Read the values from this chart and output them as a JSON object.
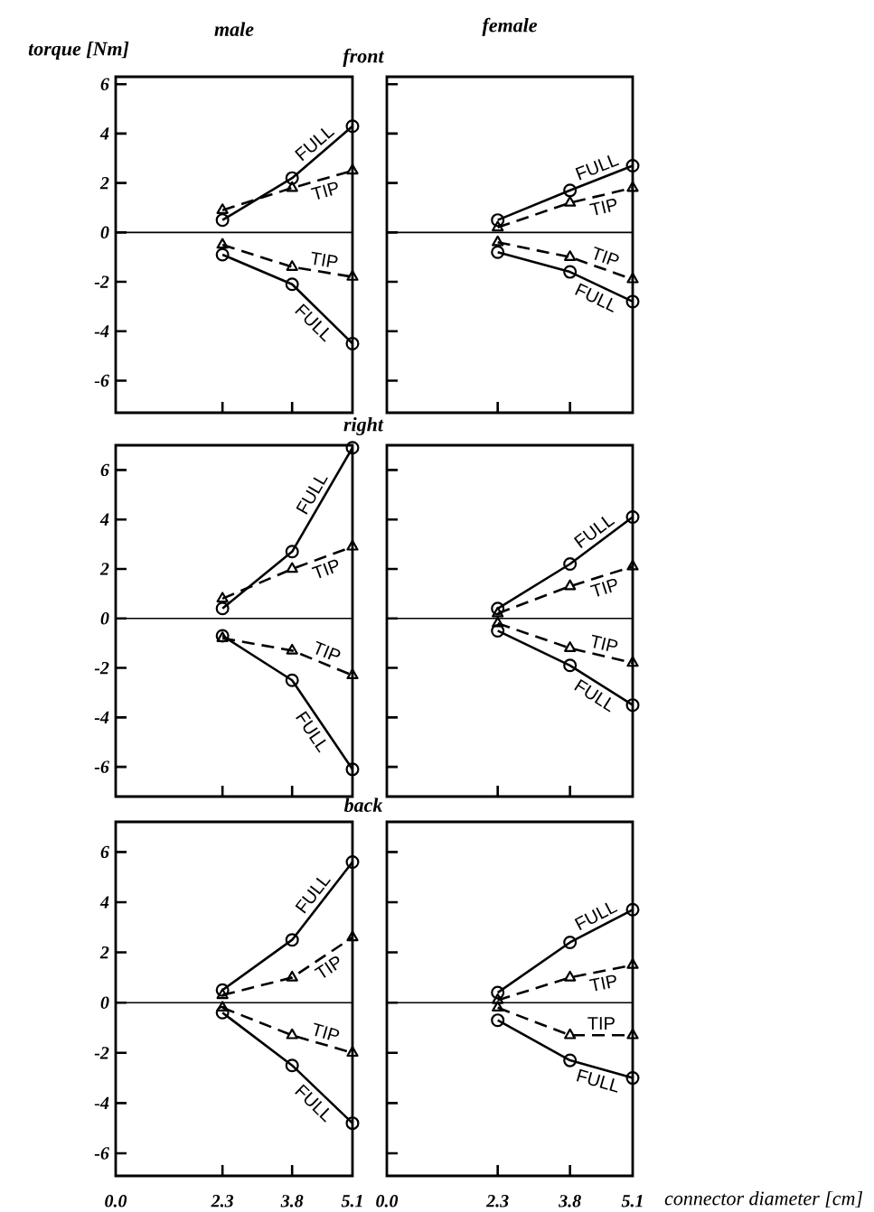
{
  "chart_data": [
    {
      "type": "line",
      "title": "male",
      "ylabel": "torque [Nm]",
      "annotations": [
        "front"
      ],
      "x": [
        2.3,
        3.8,
        5.1
      ],
      "xlim": [
        0,
        5.1
      ],
      "ylim": [
        -7.3,
        6.3
      ],
      "xticks": [
        0,
        2.3,
        3.8,
        5.1
      ],
      "yticks": [
        -6,
        -4,
        -2,
        0,
        2,
        4,
        6
      ],
      "tick_labels": "y",
      "ref_lines": [
        {
          "axis": "y",
          "value": 0
        }
      ],
      "series": [
        {
          "name": "FULL",
          "color": "#000000",
          "marker": "circle",
          "line_style": "solid",
          "values": [
            0.5,
            2.2,
            4.3
          ]
        },
        {
          "name": "TIP",
          "color": "#000000",
          "marker": "triangle",
          "line_style": "dashed",
          "values": [
            0.9,
            1.8,
            2.5
          ]
        },
        {
          "name": "TIP",
          "color": "#000000",
          "marker": "triangle",
          "line_style": "dashed",
          "values": [
            -0.5,
            -1.4,
            -1.8
          ]
        },
        {
          "name": "FULL",
          "color": "#000000",
          "marker": "circle",
          "line_style": "solid",
          "values": [
            -0.9,
            -2.1,
            -4.5
          ]
        }
      ]
    },
    {
      "type": "line",
      "title": "female",
      "x": [
        2.3,
        3.8,
        5.1
      ],
      "xlim": [
        0,
        5.1
      ],
      "ylim": [
        -7.3,
        6.3
      ],
      "xticks": [
        0,
        2.3,
        3.8,
        5.1
      ],
      "yticks": [
        -6,
        -4,
        -2,
        0,
        2,
        4,
        6
      ],
      "tick_labels": false,
      "ref_lines": [
        {
          "axis": "y",
          "value": 0
        }
      ],
      "series": [
        {
          "name": "FULL",
          "color": "#000000",
          "marker": "circle",
          "line_style": "solid",
          "values": [
            0.5,
            1.7,
            2.7
          ]
        },
        {
          "name": "TIP",
          "color": "#000000",
          "marker": "triangle",
          "line_style": "dashed",
          "values": [
            0.2,
            1.2,
            1.8
          ]
        },
        {
          "name": "TIP",
          "color": "#000000",
          "marker": "triangle",
          "line_style": "dashed",
          "values": [
            -0.4,
            -1.0,
            -1.9
          ]
        },
        {
          "name": "FULL",
          "color": "#000000",
          "marker": "circle",
          "line_style": "solid",
          "values": [
            -0.8,
            -1.6,
            -2.8
          ]
        }
      ]
    },
    {
      "type": "line",
      "annotations": [
        "right"
      ],
      "x": [
        2.3,
        3.8,
        5.1
      ],
      "xlim": [
        0,
        5.1
      ],
      "ylim": [
        -7.2,
        7.0
      ],
      "xticks": [
        0,
        2.3,
        3.8,
        5.1
      ],
      "yticks": [
        -6,
        -4,
        -2,
        0,
        2,
        4,
        6
      ],
      "tick_labels": "y",
      "ref_lines": [
        {
          "axis": "y",
          "value": 0
        }
      ],
      "series": [
        {
          "name": "FULL",
          "color": "#000000",
          "marker": "circle",
          "line_style": "solid",
          "values": [
            0.4,
            2.7,
            6.9
          ]
        },
        {
          "name": "TIP",
          "color": "#000000",
          "marker": "triangle",
          "line_style": "dashed",
          "values": [
            0.8,
            2.0,
            2.9
          ]
        },
        {
          "name": "TIP",
          "color": "#000000",
          "marker": "triangle",
          "line_style": "dashed",
          "values": [
            -0.8,
            -1.3,
            -2.3
          ]
        },
        {
          "name": "FULL",
          "color": "#000000",
          "marker": "circle",
          "line_style": "solid",
          "values": [
            -0.7,
            -2.5,
            -6.1
          ]
        }
      ]
    },
    {
      "type": "line",
      "x": [
        2.3,
        3.8,
        5.1
      ],
      "xlim": [
        0,
        5.1
      ],
      "ylim": [
        -7.2,
        7.0
      ],
      "xticks": [
        0,
        2.3,
        3.8,
        5.1
      ],
      "yticks": [
        -6,
        -4,
        -2,
        0,
        2,
        4,
        6
      ],
      "tick_labels": false,
      "ref_lines": [
        {
          "axis": "y",
          "value": 0
        }
      ],
      "series": [
        {
          "name": "FULL",
          "color": "#000000",
          "marker": "circle",
          "line_style": "solid",
          "values": [
            0.4,
            2.2,
            4.1
          ]
        },
        {
          "name": "TIP",
          "color": "#000000",
          "marker": "triangle",
          "line_style": "dashed",
          "values": [
            0.2,
            1.3,
            2.1
          ]
        },
        {
          "name": "TIP",
          "color": "#000000",
          "marker": "triangle",
          "line_style": "dashed",
          "values": [
            -0.2,
            -1.2,
            -1.8
          ]
        },
        {
          "name": "FULL",
          "color": "#000000",
          "marker": "circle",
          "line_style": "solid",
          "values": [
            -0.5,
            -1.9,
            -3.5
          ]
        }
      ]
    },
    {
      "type": "line",
      "annotations": [
        "back"
      ],
      "x": [
        2.3,
        3.8,
        5.1
      ],
      "xlim": [
        0,
        5.1
      ],
      "ylim": [
        -6.9,
        7.2
      ],
      "xticks": [
        {
          "value": 0,
          "label": "0.0"
        },
        2.3,
        3.8,
        5.1
      ],
      "yticks": [
        -6,
        -4,
        -2,
        0,
        2,
        4,
        6
      ],
      "ref_lines": [
        {
          "axis": "y",
          "value": 0
        }
      ],
      "series": [
        {
          "name": "FULL",
          "color": "#000000",
          "marker": "circle",
          "line_style": "solid",
          "values": [
            0.5,
            2.5,
            5.6
          ]
        },
        {
          "name": "TIP",
          "color": "#000000",
          "marker": "triangle",
          "line_style": "dashed",
          "values": [
            0.3,
            1.0,
            2.6
          ]
        },
        {
          "name": "TIP",
          "color": "#000000",
          "marker": "triangle",
          "line_style": "dashed",
          "values": [
            -0.2,
            -1.3,
            -2.0
          ]
        },
        {
          "name": "FULL",
          "color": "#000000",
          "marker": "circle",
          "line_style": "solid",
          "values": [
            -0.4,
            -2.5,
            -4.8
          ]
        }
      ]
    },
    {
      "type": "line",
      "xlabel": "connector diameter [cm]",
      "x": [
        2.3,
        3.8,
        5.1
      ],
      "xlim": [
        0,
        5.1
      ],
      "ylim": [
        -6.9,
        7.2
      ],
      "xticks": [
        {
          "value": 0,
          "label": "0.0"
        },
        2.3,
        3.8,
        5.1
      ],
      "yticks": [
        -6,
        -4,
        -2,
        0,
        2,
        4,
        6
      ],
      "tick_labels": "x",
      "ref_lines": [
        {
          "axis": "y",
          "value": 0
        }
      ],
      "series": [
        {
          "name": "FULL",
          "color": "#000000",
          "marker": "circle",
          "line_style": "solid",
          "values": [
            0.4,
            2.4,
            3.7
          ]
        },
        {
          "name": "TIP",
          "color": "#000000",
          "marker": "triangle",
          "line_style": "dashed",
          "values": [
            0.1,
            1.0,
            1.5
          ]
        },
        {
          "name": "TIP",
          "color": "#000000",
          "marker": "triangle",
          "line_style": "dashed",
          "values": [
            -0.2,
            -1.3,
            -1.3
          ]
        },
        {
          "name": "FULL",
          "color": "#000000",
          "marker": "circle",
          "line_style": "solid",
          "values": [
            -0.7,
            -2.3,
            -3.0
          ]
        }
      ]
    }
  ]
}
